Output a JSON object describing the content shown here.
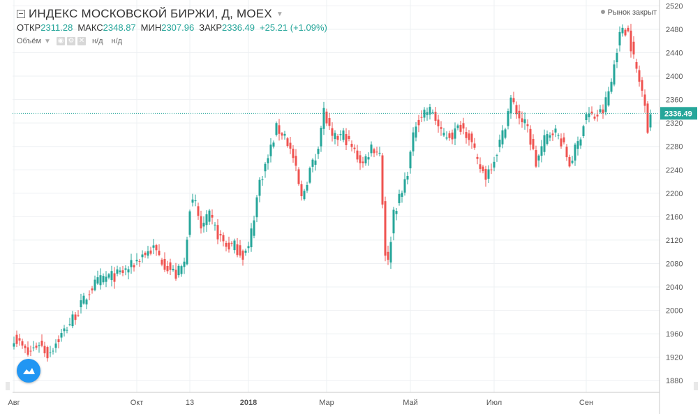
{
  "header": {
    "title": "ИНДЕКС МОСКОВСКОЙ БИРЖИ, Д, MOEX",
    "open_label": "ОТКР",
    "open_value": "2311.28",
    "high_label": "МАКС",
    "high_value": "2348.87",
    "low_label": "МИН",
    "low_value": "2307.96",
    "close_label": "ЗАКР",
    "close_value": "2336.49",
    "change": "+25.21 (+1.09%)",
    "volume_label": "Объём",
    "volume_v1": "н/д",
    "volume_v2": "н/д",
    "market_status": "Рынок закрыт"
  },
  "colors": {
    "up": "#26a69a",
    "down": "#ef5350",
    "grid": "#eef0f3",
    "axis_text": "#555555",
    "price_line": "#26a69a"
  },
  "chart_data": {
    "type": "candlestick",
    "ylim": [
      1860,
      2530
    ],
    "y_ticks": [
      1880,
      1920,
      1960,
      2000,
      2040,
      2080,
      2120,
      2160,
      2200,
      2240,
      2280,
      2320,
      2360,
      2400,
      2440,
      2480,
      2520
    ],
    "x_ticks": [
      {
        "label": "Авг",
        "index": 0
      },
      {
        "label": "Окт",
        "index": 44
      },
      {
        "label": "13",
        "index": 63
      },
      {
        "label": "2018",
        "index": 84
      },
      {
        "label": "Мар",
        "index": 112
      },
      {
        "label": "Май",
        "index": 142
      },
      {
        "label": "Июл",
        "index": 172
      },
      {
        "label": "Сен",
        "index": 205
      }
    ],
    "last_price": 2336.49,
    "last_price_label": "2336.49",
    "close_path": [
      [
        0,
        1955
      ],
      [
        5,
        1925
      ],
      [
        9,
        1945
      ],
      [
        12,
        1925
      ],
      [
        18,
        1965
      ],
      [
        23,
        2000
      ],
      [
        28,
        2040
      ],
      [
        32,
        2055
      ],
      [
        37,
        2060
      ],
      [
        42,
        2075
      ],
      [
        46,
        2095
      ],
      [
        50,
        2105
      ],
      [
        54,
        2080
      ],
      [
        58,
        2060
      ],
      [
        61,
        2080
      ],
      [
        63,
        2180
      ],
      [
        65,
        2180
      ],
      [
        67,
        2140
      ],
      [
        70,
        2160
      ],
      [
        73,
        2130
      ],
      [
        76,
        2110
      ],
      [
        79,
        2110
      ],
      [
        82,
        2095
      ],
      [
        84,
        2105
      ],
      [
        88,
        2220
      ],
      [
        91,
        2260
      ],
      [
        94,
        2310
      ],
      [
        97,
        2300
      ],
      [
        100,
        2260
      ],
      [
        103,
        2190
      ],
      [
        106,
        2240
      ],
      [
        108,
        2260
      ],
      [
        111,
        2340
      ],
      [
        114,
        2290
      ],
      [
        118,
        2300
      ],
      [
        122,
        2270
      ],
      [
        125,
        2250
      ],
      [
        128,
        2280
      ],
      [
        131,
        2270
      ],
      [
        133,
        2100
      ],
      [
        134,
        2080
      ],
      [
        136,
        2170
      ],
      [
        139,
        2200
      ],
      [
        141,
        2240
      ],
      [
        144,
        2320
      ],
      [
        147,
        2340
      ],
      [
        150,
        2340
      ],
      [
        153,
        2300
      ],
      [
        157,
        2300
      ],
      [
        160,
        2315
      ],
      [
        163,
        2300
      ],
      [
        166,
        2250
      ],
      [
        169,
        2230
      ],
      [
        172,
        2260
      ],
      [
        175,
        2300
      ],
      [
        178,
        2360
      ],
      [
        181,
        2330
      ],
      [
        184,
        2310
      ],
      [
        187,
        2250
      ],
      [
        190,
        2290
      ],
      [
        193,
        2310
      ],
      [
        196,
        2290
      ],
      [
        199,
        2250
      ],
      [
        202,
        2285
      ],
      [
        205,
        2335
      ],
      [
        208,
        2330
      ],
      [
        211,
        2340
      ],
      [
        214,
        2390
      ],
      [
        216,
        2450
      ],
      [
        218,
        2485
      ],
      [
        220,
        2475
      ],
      [
        222,
        2430
      ],
      [
        224,
        2390
      ],
      [
        226,
        2360
      ],
      [
        227,
        2310
      ],
      [
        228,
        2336
      ]
    ]
  }
}
